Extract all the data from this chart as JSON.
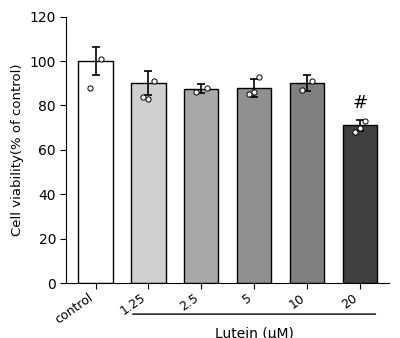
{
  "categories": [
    "control",
    "1.25",
    "2.5",
    "5",
    "10",
    "20"
  ],
  "values": [
    100.0,
    90.0,
    87.5,
    88.0,
    90.0,
    71.0
  ],
  "errors": [
    6.5,
    5.5,
    2.0,
    4.0,
    3.5,
    2.5
  ],
  "bar_colors": [
    "#ffffff",
    "#d0d0d0",
    "#a8a8a8",
    "#909090",
    "#808080",
    "#404040"
  ],
  "bar_edgecolor": "#000000",
  "scatter_points": [
    [
      88,
      101
    ],
    [
      84,
      83,
      91
    ],
    [
      86,
      88
    ],
    [
      85,
      86,
      93
    ],
    [
      87,
      91
    ],
    [
      68,
      70,
      73
    ]
  ],
  "ylabel": "Cell viability(% of control)",
  "xlabel_lutein": "Lutein (μM)",
  "ylim": [
    0,
    120
  ],
  "yticks": [
    0,
    20,
    40,
    60,
    80,
    100,
    120
  ],
  "hash_label": "#",
  "hash_fontsize": 13,
  "bar_linewidth": 1.0
}
